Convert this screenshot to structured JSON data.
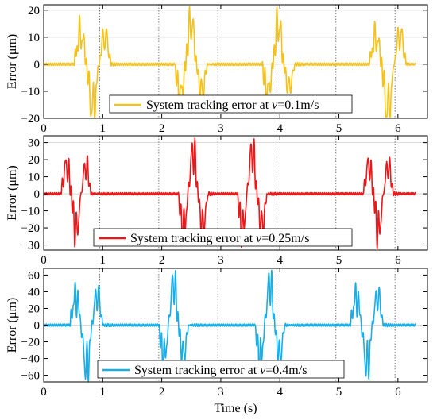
{
  "chart_data": [
    {
      "type": "line",
      "series_name": "System tracking error at v=0.1m/s",
      "legend": {
        "prefix": "System tracking error at ",
        "var": "v",
        "suffix": "=0.1m/s",
        "position": "bottom-center"
      },
      "color": "#F5C21B",
      "ylabel": "Error (μm)",
      "xlim": [
        0,
        6.5
      ],
      "ylim": [
        -20,
        22
      ],
      "xticks": [
        0,
        1,
        2,
        3,
        4,
        5,
        6
      ],
      "yticks": [
        -20,
        -10,
        0,
        10,
        20
      ],
      "dotted_vlines": [
        0.95,
        1.95,
        2.95,
        3.95,
        4.95,
        5.95
      ],
      "grid_y": [
        0,
        10,
        20
      ],
      "bursts": [
        {
          "t": 0.52,
          "amp": 20,
          "peak": [
            14.5,
            -21,
            13.5
          ],
          "dur": 0.62
        },
        {
          "t": 2.22,
          "amp": 20,
          "peak": [
            -15,
            20,
            -13
          ],
          "dur": 0.55
        },
        {
          "t": 3.7,
          "amp": 20,
          "peak": [
            -13,
            19,
            -11
          ],
          "dur": 0.55
        },
        {
          "t": 5.52,
          "amp": 20,
          "peak": [
            13,
            -22,
            14
          ],
          "dur": 0.62
        }
      ]
    },
    {
      "type": "line",
      "series_name": "System tracking error at v=0.25m/s",
      "legend": {
        "prefix": "System tracking error at ",
        "var": "v",
        "suffix": "=0.25m/s",
        "position": "bottom-center"
      },
      "color": "#E8191B",
      "ylabel": "Error (μm)",
      "xlim": [
        0,
        6.5
      ],
      "ylim": [
        -33,
        34
      ],
      "xticks": [
        0,
        1,
        2,
        3,
        4,
        5,
        6
      ],
      "yticks": [
        -30,
        -20,
        -10,
        0,
        10,
        20,
        30
      ],
      "dotted_vlines": [
        0.95,
        1.95,
        2.95,
        3.95,
        4.95,
        5.95
      ],
      "grid_y": [
        0,
        30
      ],
      "bursts": [
        {
          "t": 0.3,
          "amp": 30,
          "peak": [
            22,
            -28,
            21
          ],
          "dur": 0.5
        },
        {
          "t": 2.28,
          "amp": 30,
          "peak": [
            -26,
            32,
            -24
          ],
          "dur": 0.5
        },
        {
          "t": 3.28,
          "amp": 30,
          "peak": [
            -26,
            32,
            -24
          ],
          "dur": 0.5
        },
        {
          "t": 5.42,
          "amp": 30,
          "peak": [
            22,
            -28,
            21
          ],
          "dur": 0.5
        }
      ]
    },
    {
      "type": "line",
      "series_name": "System tracking error at v=0.4m/s",
      "legend": {
        "prefix": "System tracking error at ",
        "var": "v",
        "suffix": "=0.4m/s",
        "position": "bottom-center"
      },
      "color": "#1AAEE8",
      "ylabel": "Error (μm)",
      "xlim": [
        0,
        6.5
      ],
      "ylim": [
        -68,
        68
      ],
      "xticks": [
        0,
        1,
        2,
        3,
        4,
        5,
        6
      ],
      "yticks": [
        -60,
        -40,
        -20,
        0,
        20,
        40,
        60
      ],
      "dotted_vlines": [
        0.95,
        1.95,
        2.95,
        3.95,
        4.95,
        5.95
      ],
      "grid_y": [
        0
      ],
      "xlabel": "Time (s)",
      "bursts": [
        {
          "t": 0.45,
          "amp": 65,
          "peak": [
            45,
            -66,
            47
          ],
          "dur": 0.55
        },
        {
          "t": 1.95,
          "amp": 65,
          "peak": [
            -50,
            65,
            -46
          ],
          "dur": 0.5
        },
        {
          "t": 3.58,
          "amp": 65,
          "peak": [
            -50,
            66,
            -48
          ],
          "dur": 0.5
        },
        {
          "t": 5.2,
          "amp": 65,
          "peak": [
            44,
            -62,
            45
          ],
          "dur": 0.55
        }
      ]
    }
  ]
}
